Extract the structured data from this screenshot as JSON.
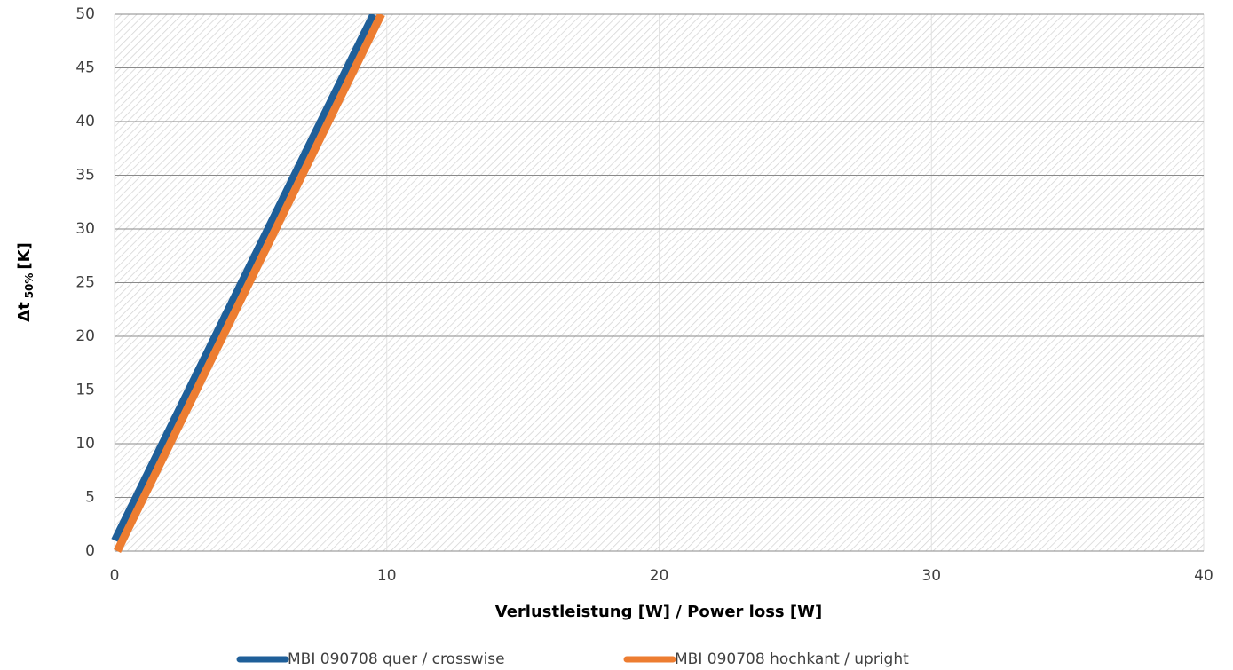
{
  "chart_data": {
    "type": "line",
    "y_label": "Δt",
    "y_label_sub": "50%",
    "y_label_unit": "[K]",
    "x_label": "Verlustleistung [W] / Power loss [W]",
    "xlim": [
      0,
      40
    ],
    "xticks": [
      0,
      10,
      20,
      30,
      40
    ],
    "ylim": [
      0,
      50
    ],
    "yticks": [
      0,
      5,
      10,
      15,
      20,
      25,
      30,
      35,
      40,
      45,
      50
    ],
    "grid": true,
    "legend": "bottom",
    "series": [
      {
        "name": "MBI 090708 quer / crosswise",
        "color": "#1f5f99",
        "x": [
          0,
          9.5
        ],
        "values": [
          1,
          50
        ]
      },
      {
        "name": "MBI 090708 hochkant / upright",
        "color": "#ed7d31",
        "x": [
          0.1,
          9.8
        ],
        "values": [
          0,
          50
        ]
      }
    ]
  }
}
